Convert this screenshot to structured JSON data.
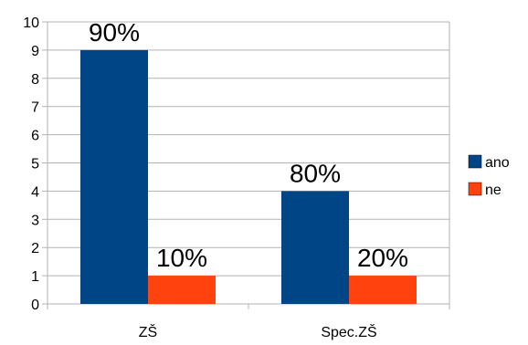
{
  "chart_data": {
    "type": "bar",
    "categories": [
      "ZŠ",
      "Spec.ZŠ"
    ],
    "series": [
      {
        "name": "ano",
        "values": [
          9,
          4
        ],
        "labels": [
          "90%",
          "80%"
        ],
        "color": "#004586"
      },
      {
        "name": "ne",
        "values": [
          1,
          1
        ],
        "labels": [
          "10%",
          "20%"
        ],
        "color": "#ff420e"
      }
    ],
    "ylim": [
      0,
      10
    ],
    "yticks": [
      "0",
      "1",
      "2",
      "3",
      "4",
      "5",
      "6",
      "7",
      "8",
      "9",
      "10"
    ],
    "grid": true,
    "legend": "right"
  }
}
